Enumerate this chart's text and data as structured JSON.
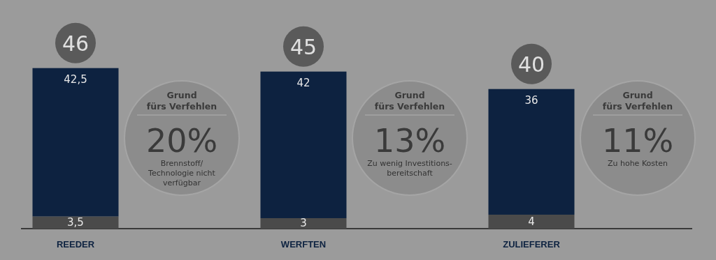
{
  "chart_data": {
    "type": "bar",
    "stacked": true,
    "categories": [
      "REEDER",
      "WERFTEN",
      "ZULIEFERER"
    ],
    "series": [
      {
        "color": "#4a4a4a",
        "values": [
          3.5,
          3,
          4
        ],
        "value_labels": [
          "3,5",
          "3",
          "4"
        ]
      },
      {
        "color": "#0d2240",
        "values": [
          42.5,
          42,
          36
        ],
        "value_labels": [
          "42,5",
          "42",
          "36"
        ]
      }
    ],
    "totals": [
      "46",
      "45",
      "40"
    ],
    "annotations": [
      "Grund\nfürs Verfehlen\n20%\nBrennstoff/\nTechnologie nicht\nverfügbar",
      "Grund\nfürs Verfehlen\n13%\nZu wenig Investitions-\nbereitschaft",
      "Grund\nfürs Verfehlen\n11%\nZu hohe Kosten"
    ]
  }
}
